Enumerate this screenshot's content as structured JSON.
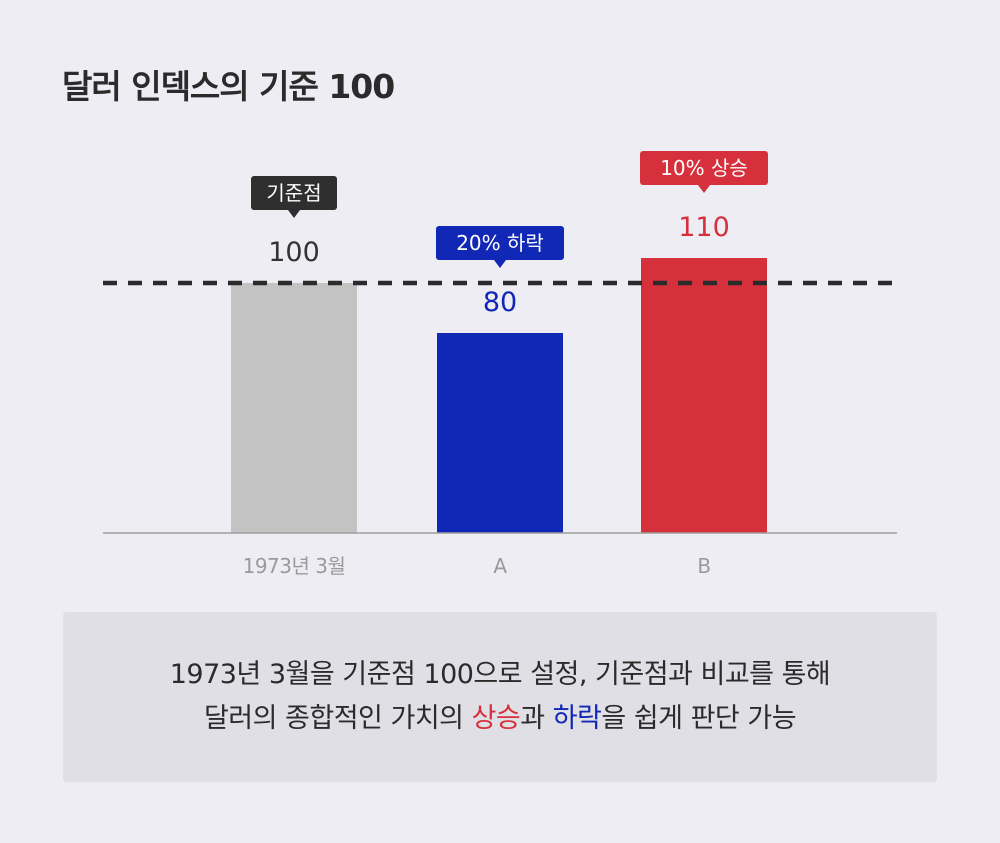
{
  "title": "달러 인덱스의 기준 100",
  "colors": {
    "base": "#C3C3C3",
    "down": "#1128B7",
    "up": "#D6303C",
    "base_label": "#333333",
    "axis_label": "#9A9A9A"
  },
  "chart_data": {
    "type": "bar",
    "categories": [
      "1973년 3월",
      "A",
      "B"
    ],
    "values": [
      100,
      80,
      110
    ],
    "value_labels": [
      "100",
      "80",
      "110"
    ],
    "reference_line": {
      "value": 100,
      "style": "dashed"
    },
    "ylim": [
      0,
      110
    ],
    "annotations": [
      {
        "category": "1973년 3월",
        "text": "기준점"
      },
      {
        "category": "A",
        "text": "20% 하락"
      },
      {
        "category": "B",
        "text": "10% 상승"
      }
    ],
    "title": "",
    "xlabel": "",
    "ylabel": ""
  },
  "note": {
    "line1": "1973년 3월을 기준점 100으로 설정, 기준점과 비교를 통해",
    "line2_prefix": "달러의 종합적인 가치의 ",
    "line2_up": "상승",
    "line2_mid": "과 ",
    "line2_down": "하락",
    "line2_suffix": "을 쉽게 판단 가능"
  }
}
